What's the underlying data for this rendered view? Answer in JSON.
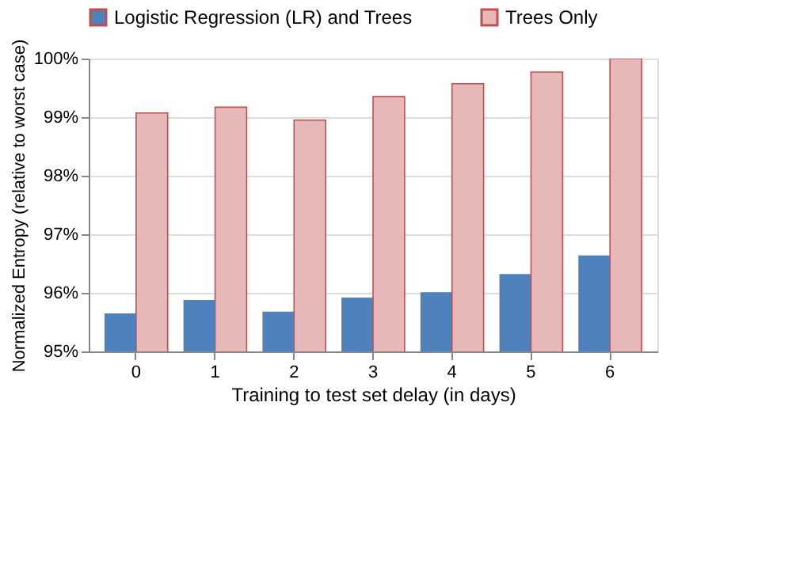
{
  "chart_data": {
    "type": "bar",
    "xlabel": "Training to test set delay (in days)",
    "ylabel": "Normalized Entropy (relative to worst case)",
    "categories": [
      "0",
      "1",
      "2",
      "3",
      "4",
      "5",
      "6"
    ],
    "series": [
      {
        "name": "Logistic Regression (LR) and Trees",
        "color": "#4f81bd",
        "values": [
          95.65,
          95.88,
          95.68,
          95.92,
          96.01,
          96.32,
          96.64
        ]
      },
      {
        "name": "Trees Only",
        "color": "#e6b9b8",
        "values": [
          99.07,
          99.17,
          98.95,
          99.35,
          99.57,
          99.77,
          100.0
        ]
      }
    ],
    "ylim": [
      95,
      100
    ],
    "yticks": [
      {
        "value": 95,
        "label": "95%"
      },
      {
        "value": 96,
        "label": "96%"
      },
      {
        "value": 97,
        "label": "97%"
      },
      {
        "value": 98,
        "label": "98%"
      },
      {
        "value": 99,
        "label": "99%"
      },
      {
        "value": 100,
        "label": "100%"
      }
    ],
    "grid": "y",
    "legend": "top"
  }
}
